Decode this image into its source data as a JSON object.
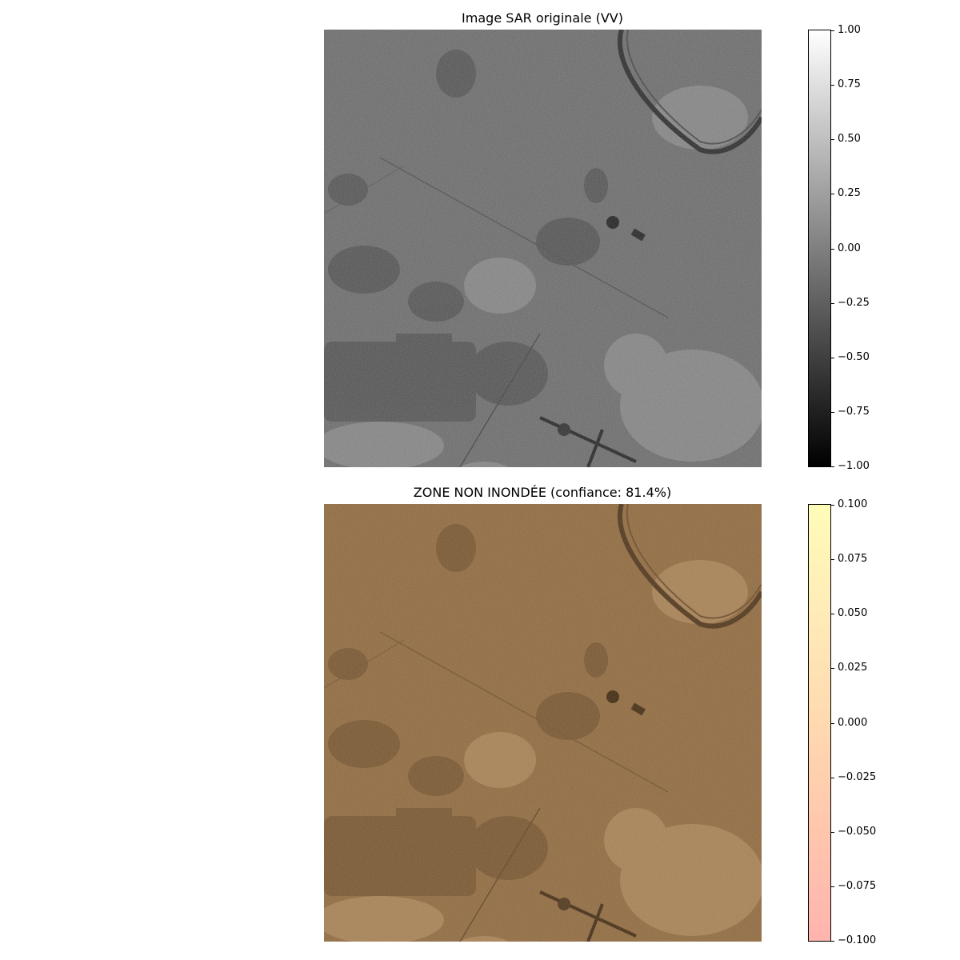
{
  "panels": [
    {
      "title": "Image SAR originale (VV)",
      "image_description": "grayscale SAR backscatter image",
      "colorbar": {
        "colormap": "gray",
        "range": [
          -1.0,
          1.0
        ],
        "ticks": [
          "1.00",
          "0.75",
          "0.50",
          "0.25",
          "0.00",
          "−0.25",
          "−0.50",
          "−0.75",
          "−1.00"
        ]
      }
    },
    {
      "title": "ZONE NON INONDÉE (confiance: 81.4%)",
      "colorbar": {
        "colormap": "YlOrRd_r (alpha)",
        "range": [
          -0.1,
          0.1
        ],
        "ticks": [
          "0.100",
          "0.075",
          "0.050",
          "0.025",
          "0.000",
          "−0.025",
          "−0.050",
          "−0.075",
          "−0.100"
        ]
      }
    }
  ],
  "colors": {
    "sar_base": "#6e6e6e",
    "overlay_base": "#8c6a45",
    "cbar2_top": "#fffcb8",
    "cbar2_mid": "#ffd9b0",
    "cbar2_bottom": "#ffb4ae"
  }
}
